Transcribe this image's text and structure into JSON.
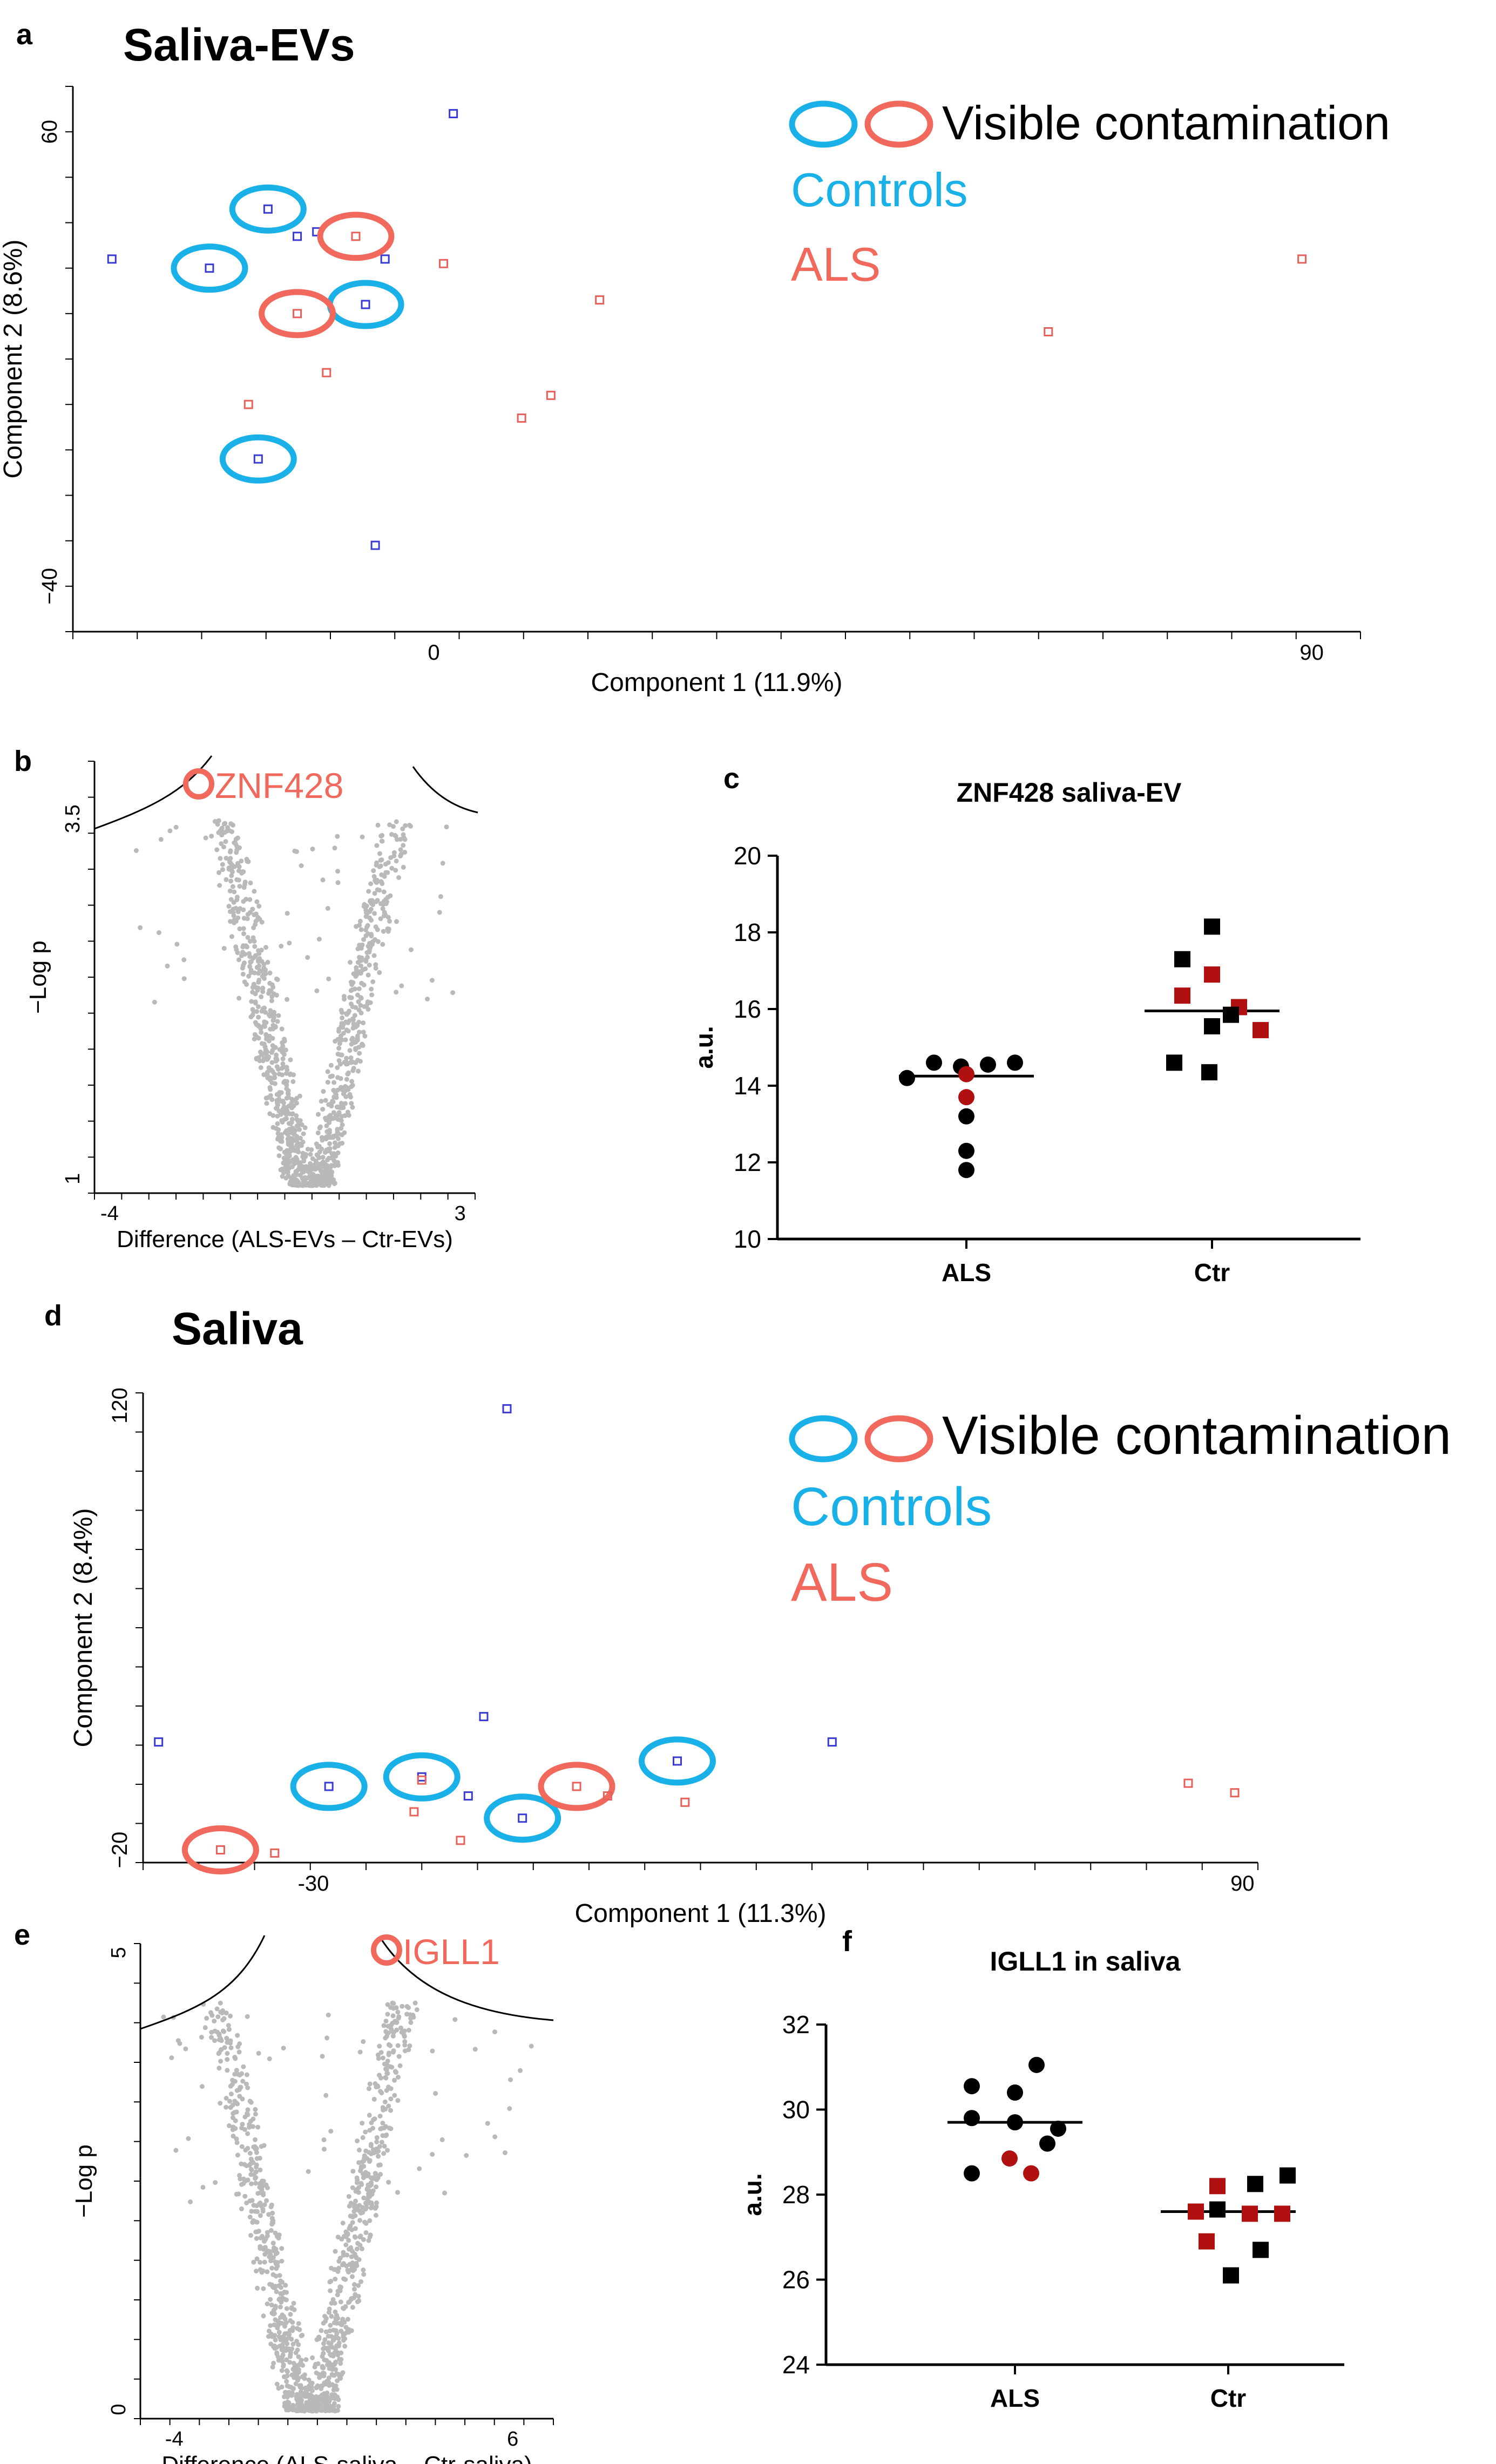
{
  "figure": {
    "panels": [
      {
        "letter": "a",
        "title": "Saliva-EVs"
      },
      {
        "letter": "b",
        "title": ""
      },
      {
        "letter": "c",
        "title": ""
      },
      {
        "letter": "d",
        "title": "Saliva"
      },
      {
        "letter": "e",
        "title": ""
      },
      {
        "letter": "f",
        "title": ""
      }
    ]
  },
  "legend": {
    "contamination_label": "Visible contamination",
    "controls_label": "Controls",
    "als_label": "ALS"
  },
  "colors": {
    "control_marker": "#3a3ad4",
    "als_marker": "#e8605a",
    "control_ring": "#1ab0e8",
    "als_ring": "#f0695c",
    "volcano_point": "#b9b9b9",
    "dot_black": "#000000",
    "dot_red": "#b01010"
  },
  "chart_data": [
    {
      "panel": "a",
      "type": "scatter",
      "title": "Saliva-EVs",
      "xlabel": "Component 1 (11.9%)",
      "ylabel": "Component 2 (8.6%)",
      "xlim": [
        -37,
        95
      ],
      "ylim": [
        -50,
        70
      ],
      "xticks": [
        0,
        90
      ],
      "yticks": [
        60,
        -40
      ],
      "series": [
        {
          "name": "Controls",
          "points": [
            {
              "x": 2,
              "y": 64,
              "ring": false
            },
            {
              "x": -17,
              "y": 43,
              "ring": true
            },
            {
              "x": -14,
              "y": 37,
              "ring": false
            },
            {
              "x": -12,
              "y": 38,
              "ring": false
            },
            {
              "x": -33,
              "y": 32,
              "ring": false
            },
            {
              "x": -23,
              "y": 30,
              "ring": true
            },
            {
              "x": -5,
              "y": 32,
              "ring": false
            },
            {
              "x": -7,
              "y": 22,
              "ring": true
            },
            {
              "x": -18,
              "y": -12,
              "ring": true
            },
            {
              "x": -6,
              "y": -31,
              "ring": false
            }
          ]
        },
        {
          "name": "ALS",
          "points": [
            {
              "x": -8,
              "y": 37,
              "ring": true
            },
            {
              "x": 1,
              "y": 31,
              "ring": false
            },
            {
              "x": 17,
              "y": 23,
              "ring": false
            },
            {
              "x": -14,
              "y": 20,
              "ring": true
            },
            {
              "x": -11,
              "y": 7,
              "ring": false
            },
            {
              "x": -19,
              "y": 0,
              "ring": false
            },
            {
              "x": 12,
              "y": 2,
              "ring": false
            },
            {
              "x": 9,
              "y": -3,
              "ring": false
            },
            {
              "x": 63,
              "y": 16,
              "ring": false
            },
            {
              "x": 89,
              "y": 32,
              "ring": false
            }
          ]
        }
      ]
    },
    {
      "panel": "b",
      "type": "scatter",
      "subtype": "volcano",
      "xlabel": "Difference (ALS-EVs – Ctr-EVs)",
      "ylabel": "−Log p",
      "xlim": [
        -4.3,
        3.3
      ],
      "ylim": [
        0.9,
        3.9
      ],
      "xticks": [
        -4,
        3
      ],
      "yticks": [
        3.5,
        1
      ],
      "highlight": {
        "label": "ZNF428",
        "x": -2.25,
        "y": 4.0
      },
      "threshold_curves": true
    },
    {
      "panel": "c",
      "type": "scatter",
      "subtype": "dot-plot",
      "title": "ZNF428 saliva-EV",
      "xlabel": "",
      "ylabel": "a.u.",
      "categories": [
        "ALS",
        "Ctr"
      ],
      "ylim": [
        10,
        20
      ],
      "yticks": [
        10,
        12,
        14,
        16,
        18,
        20
      ],
      "groups": [
        {
          "name": "ALS",
          "marker": "circle",
          "median": 14.25,
          "points": [
            {
              "value": 14.2,
              "color": "black"
            },
            {
              "value": 14.6,
              "color": "black"
            },
            {
              "value": 14.5,
              "color": "black"
            },
            {
              "value": 14.55,
              "color": "black"
            },
            {
              "value": 14.6,
              "color": "black"
            },
            {
              "value": 14.3,
              "color": "red"
            },
            {
              "value": 13.7,
              "color": "red"
            },
            {
              "value": 13.2,
              "color": "black"
            },
            {
              "value": 12.3,
              "color": "black"
            },
            {
              "value": 11.8,
              "color": "black"
            }
          ]
        },
        {
          "name": "Ctr",
          "marker": "square",
          "median": 15.95,
          "points": [
            {
              "value": 18.15,
              "color": "black"
            },
            {
              "value": 17.3,
              "color": "black"
            },
            {
              "value": 16.9,
              "color": "red"
            },
            {
              "value": 16.35,
              "color": "red"
            },
            {
              "value": 16.05,
              "color": "red"
            },
            {
              "value": 15.85,
              "color": "black"
            },
            {
              "value": 15.45,
              "color": "red"
            },
            {
              "value": 15.55,
              "color": "black"
            },
            {
              "value": 14.6,
              "color": "black"
            },
            {
              "value": 14.35,
              "color": "black"
            }
          ]
        }
      ]
    },
    {
      "panel": "d",
      "type": "scatter",
      "title": "Saliva",
      "xlabel": "Component 1 (11.3%)",
      "ylabel": "Component 2 (8.4%)",
      "xlim": [
        -52,
        92
      ],
      "ylim": [
        -24,
        124
      ],
      "xticks": [
        -30,
        90
      ],
      "yticks": [
        120,
        -20
      ],
      "series": [
        {
          "name": "Controls",
          "points": [
            {
              "x": -5,
              "y": 119,
              "ring": false
            },
            {
              "x": -8,
              "y": 22,
              "ring": false
            },
            {
              "x": -50,
              "y": 14,
              "ring": false
            },
            {
              "x": 37,
              "y": 14,
              "ring": false
            },
            {
              "x": 17,
              "y": 8,
              "ring": true
            },
            {
              "x": -28,
              "y": 0,
              "ring": true
            },
            {
              "x": -16,
              "y": 3,
              "ring": true
            },
            {
              "x": -10,
              "y": -3,
              "ring": false
            },
            {
              "x": -3,
              "y": -10,
              "ring": true
            }
          ]
        },
        {
          "name": "ALS",
          "points": [
            {
              "x": -16,
              "y": 2,
              "ring": false
            },
            {
              "x": 4,
              "y": 0,
              "ring": true
            },
            {
              "x": 8,
              "y": -3,
              "ring": false
            },
            {
              "x": 18,
              "y": -5,
              "ring": false
            },
            {
              "x": -17,
              "y": -8,
              "ring": false
            },
            {
              "x": -11,
              "y": -17,
              "ring": false
            },
            {
              "x": -42,
              "y": -20,
              "ring": true
            },
            {
              "x": -35,
              "y": -21,
              "ring": false
            },
            {
              "x": 83,
              "y": 1,
              "ring": false
            },
            {
              "x": 89,
              "y": -2,
              "ring": false
            }
          ]
        }
      ]
    },
    {
      "panel": "e",
      "type": "scatter",
      "subtype": "volcano",
      "xlabel": "Difference (ALS-saliva – Ctr-saliva)",
      "ylabel": "−Log p",
      "xlim": [
        -5,
        7.2
      ],
      "ylim": [
        -0.1,
        5.1
      ],
      "xticks": [
        -4,
        6
      ],
      "yticks": [
        5,
        0
      ],
      "highlight": {
        "label": "IGLL1",
        "x": 1.7,
        "y": 4.9
      },
      "threshold_curves": true
    },
    {
      "panel": "f",
      "type": "scatter",
      "subtype": "dot-plot",
      "title": "IGLL1 in saliva",
      "xlabel": "",
      "ylabel": "a.u.",
      "categories": [
        "ALS",
        "Ctr"
      ],
      "ylim": [
        24,
        32
      ],
      "yticks": [
        24,
        26,
        28,
        30,
        32
      ],
      "groups": [
        {
          "name": "ALS",
          "marker": "circle",
          "median": 29.7,
          "points": [
            {
              "value": 31.05,
              "color": "black"
            },
            {
              "value": 30.55,
              "color": "black"
            },
            {
              "value": 30.4,
              "color": "black"
            },
            {
              "value": 29.8,
              "color": "black"
            },
            {
              "value": 29.7,
              "color": "black"
            },
            {
              "value": 29.55,
              "color": "black"
            },
            {
              "value": 29.2,
              "color": "black"
            },
            {
              "value": 28.85,
              "color": "red"
            },
            {
              "value": 28.5,
              "color": "black"
            },
            {
              "value": 28.5,
              "color": "red"
            }
          ]
        },
        {
          "name": "Ctr",
          "marker": "square",
          "median": 27.6,
          "points": [
            {
              "value": 28.45,
              "color": "black"
            },
            {
              "value": 28.25,
              "color": "black"
            },
            {
              "value": 28.2,
              "color": "red"
            },
            {
              "value": 27.65,
              "color": "black"
            },
            {
              "value": 27.6,
              "color": "red"
            },
            {
              "value": 27.55,
              "color": "red"
            },
            {
              "value": 27.55,
              "color": "red"
            },
            {
              "value": 26.9,
              "color": "red"
            },
            {
              "value": 26.7,
              "color": "black"
            },
            {
              "value": 26.1,
              "color": "black"
            }
          ]
        }
      ]
    }
  ]
}
